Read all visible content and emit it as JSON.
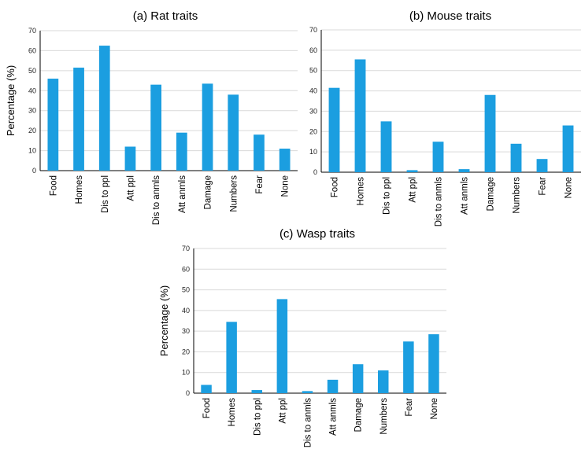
{
  "chart_data": [
    {
      "type": "bar",
      "title": "(a) Rat traits",
      "xlabel": "",
      "ylabel": "Percentage (%)",
      "ylim": [
        0,
        70
      ],
      "yticks": [
        0,
        10,
        20,
        30,
        40,
        50,
        60,
        70
      ],
      "grid": true,
      "color": "#1b9ee0",
      "categories": [
        "Food",
        "Homes",
        "Dis to ppl",
        "Att ppl",
        "Dis to anmls",
        "Att anmls",
        "Damage",
        "Numbers",
        "Fear",
        "None"
      ],
      "values": [
        46,
        51.5,
        62.5,
        12,
        43,
        19,
        43.5,
        38,
        18,
        11
      ]
    },
    {
      "type": "bar",
      "title": "(b) Mouse traits",
      "xlabel": "",
      "ylabel": "",
      "ylim": [
        0,
        70
      ],
      "yticks": [
        0,
        10,
        20,
        30,
        40,
        50,
        60,
        70
      ],
      "grid": true,
      "color": "#1b9ee0",
      "categories": [
        "Food",
        "Homes",
        "Dis to ppl",
        "Att ppl",
        "Dis to anmls",
        "Att anmls",
        "Damage",
        "Numbers",
        "Fear",
        "None"
      ],
      "values": [
        41.5,
        55.5,
        25,
        1,
        15,
        1.5,
        38,
        14,
        6.5,
        23
      ]
    },
    {
      "type": "bar",
      "title": "(c) Wasp traits",
      "xlabel": "",
      "ylabel": "Percentage (%)",
      "ylim": [
        0,
        70
      ],
      "yticks": [
        0,
        10,
        20,
        30,
        40,
        50,
        60,
        70
      ],
      "grid": true,
      "color": "#1b9ee0",
      "categories": [
        "Food",
        "Homes",
        "Dis to ppl",
        "Att ppl",
        "Dis to anmls",
        "Att anmls",
        "Damage",
        "Numbers",
        "Fear",
        "None"
      ],
      "values": [
        4,
        34.5,
        1.5,
        45.5,
        1,
        6.5,
        14,
        11,
        25,
        28.5
      ]
    }
  ]
}
